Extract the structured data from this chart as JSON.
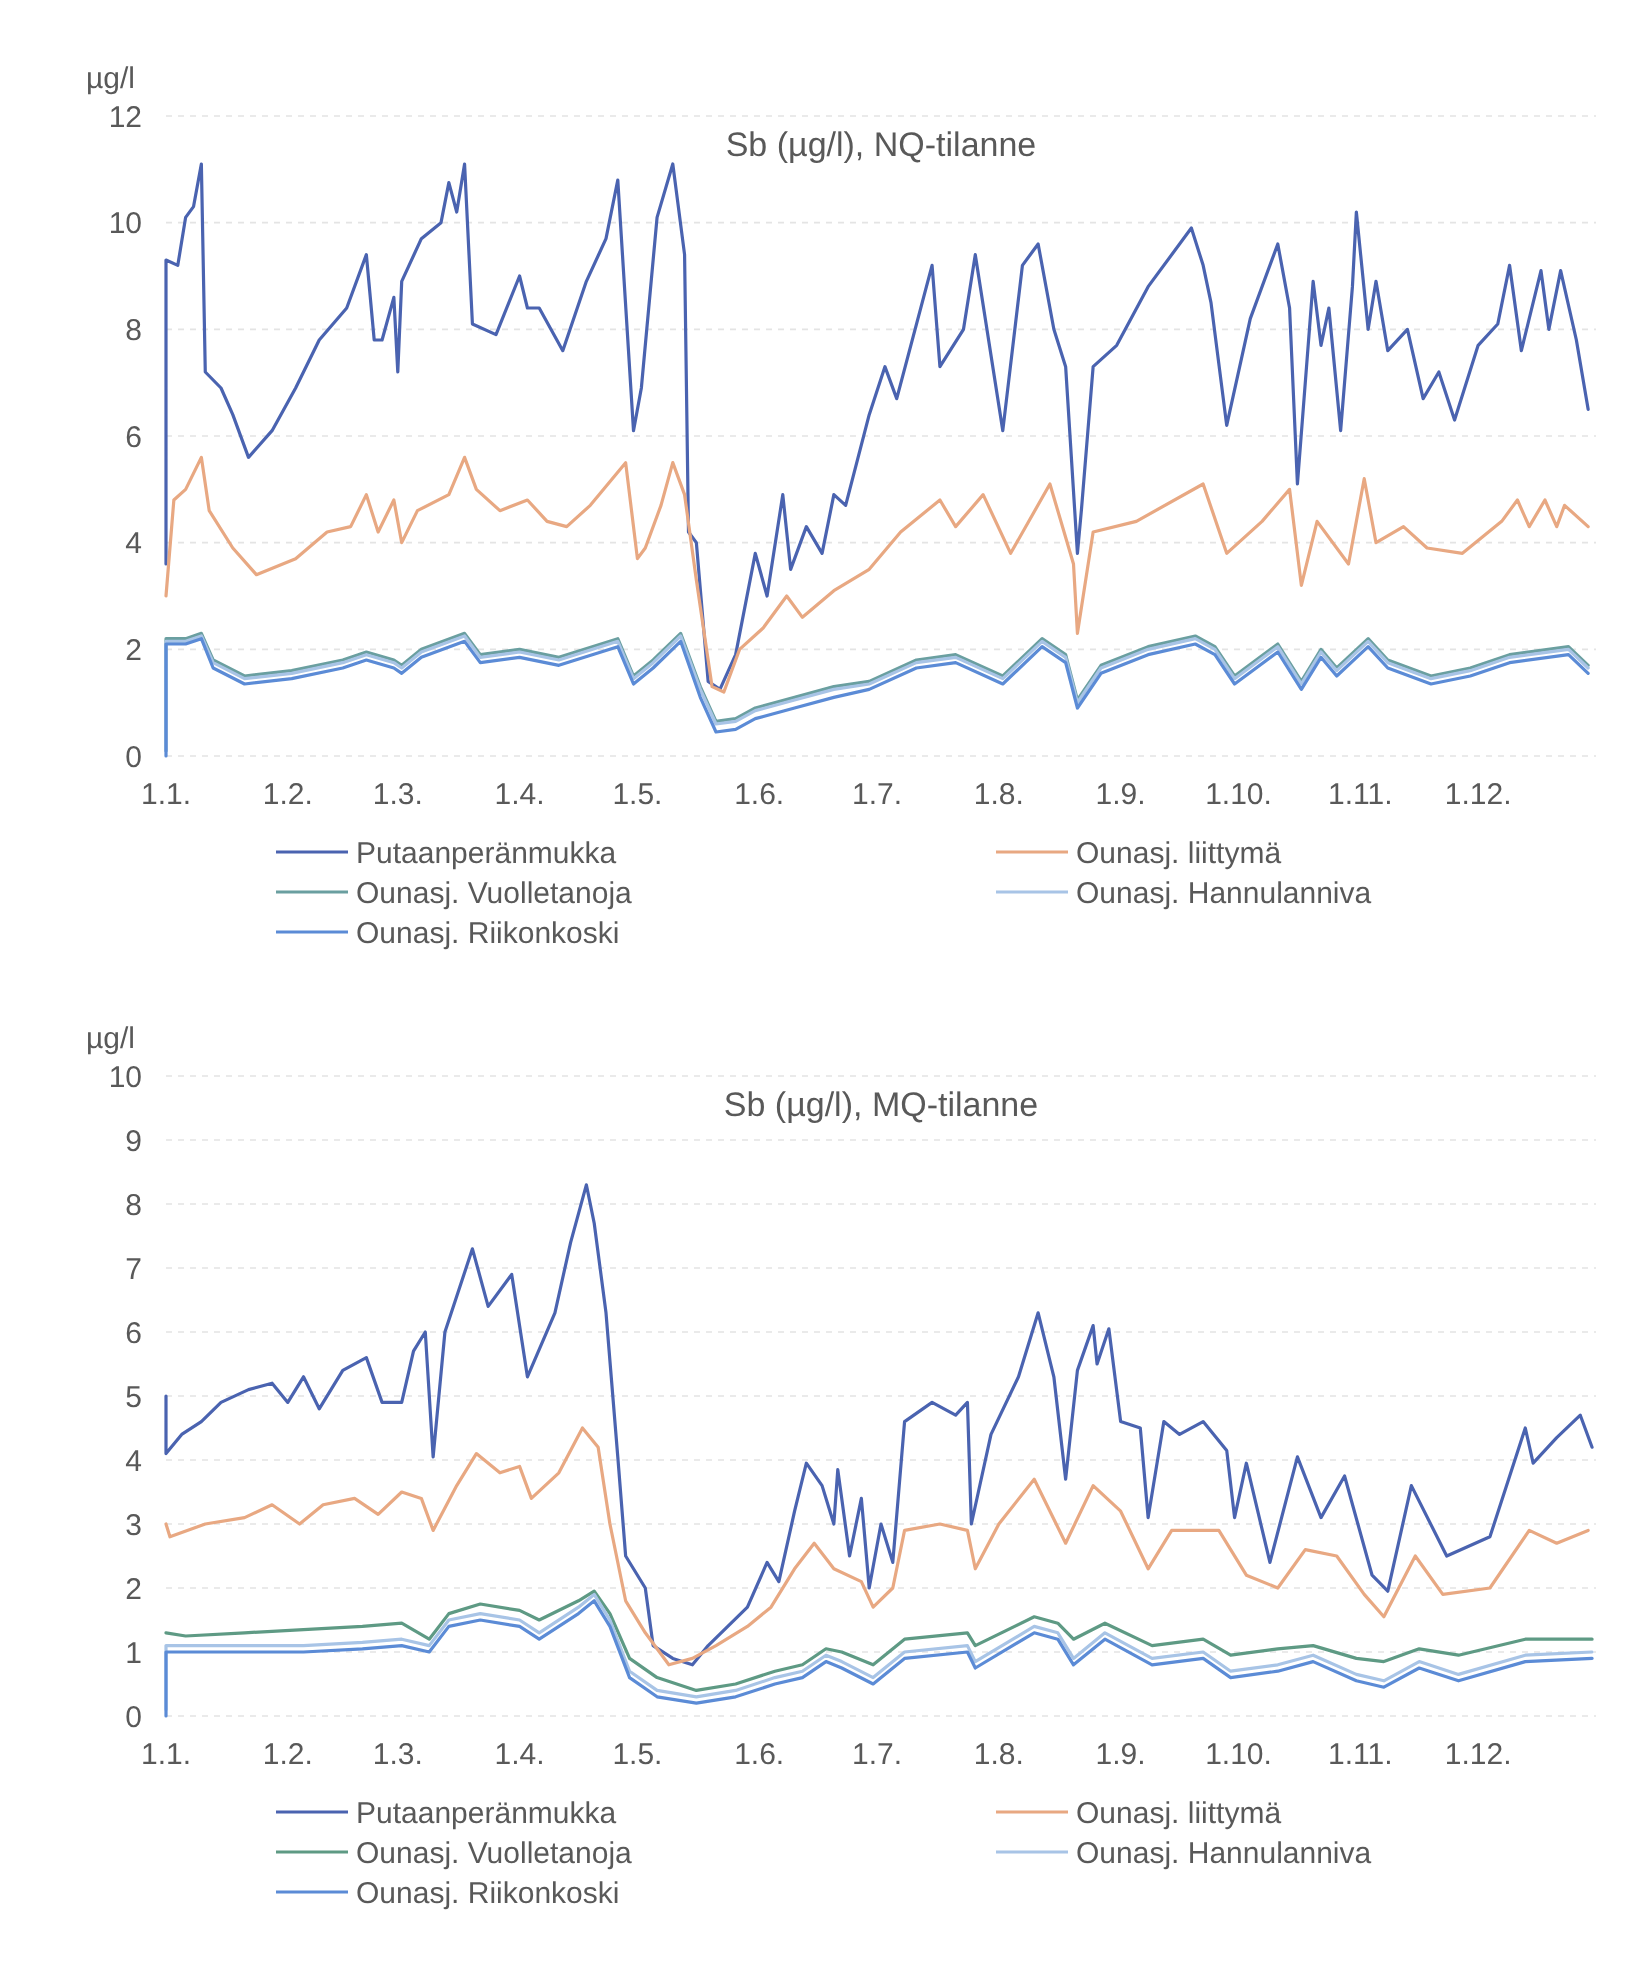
{
  "chart_data": [
    {
      "type": "line",
      "title": "Sb (µg/l), NQ-tilanne",
      "ylabel": "µg/l",
      "xlim": [
        "--01-01",
        "--12-31"
      ],
      "ylim": [
        0,
        12
      ],
      "yticks": [
        0,
        2,
        4,
        6,
        8,
        10,
        12
      ],
      "xticks": [
        {
          "value": "--01-01",
          "label": "1.1."
        },
        {
          "value": "--02-01",
          "label": "1.2."
        },
        {
          "value": "--03-01",
          "label": "1.3."
        },
        {
          "value": "--04-01",
          "label": "1.4."
        },
        {
          "value": "--05-01",
          "label": "1.5."
        },
        {
          "value": "--06-01",
          "label": "1.6."
        },
        {
          "value": "--07-01",
          "label": "1.7."
        },
        {
          "value": "--08-01",
          "label": "1.8."
        },
        {
          "value": "--09-01",
          "label": "1.9."
        },
        {
          "value": "--10-01",
          "label": "1.10."
        },
        {
          "value": "--11-01",
          "label": "1.11."
        },
        {
          "value": "--12-01",
          "label": "1.12."
        }
      ],
      "grid": "y",
      "legend": "bottom",
      "marker": "none",
      "line_style": "solid",
      "series": [
        {
          "name": "Putaanperänmukka",
          "color": "#4a63b0",
          "x": [
            "--01-01",
            "--01-01",
            "--01-04",
            "--01-06",
            "--01-08",
            "--01-10",
            "--01-11",
            "--01-15",
            "--01-18",
            "--01-22",
            "--01-28",
            "--02-03",
            "--02-09",
            "--02-16",
            "--02-21",
            "--02-23",
            "--02-25",
            "--02-28",
            "--03-01",
            "--03-02",
            "--03-07",
            "--03-12",
            "--03-14",
            "--03-16",
            "--03-18",
            "--03-20",
            "--03-26",
            "--04-01",
            "--04-03",
            "--04-06",
            "--04-12",
            "--04-18",
            "--04-23",
            "--04-26",
            "--04-30",
            "--05-02",
            "--05-06",
            "--05-10",
            "--05-13",
            "--05-14",
            "--05-16",
            "--05-19",
            "--05-22",
            "--05-26",
            "--05-31",
            "--06-03",
            "--06-07",
            "--06-09",
            "--06-13",
            "--06-17",
            "--06-20",
            "--06-23",
            "--06-29",
            "--07-03",
            "--07-06",
            "--07-15",
            "--07-17",
            "--07-23",
            "--07-26",
            "--08-02",
            "--08-07",
            "--08-11",
            "--08-15",
            "--08-18",
            "--08-21",
            "--08-22",
            "--08-25",
            "--08-31",
            "--09-08",
            "--09-19",
            "--09-22",
            "--09-24",
            "--09-28",
            "--10-04",
            "--10-11",
            "--10-14",
            "--10-16",
            "--10-20",
            "--10-22",
            "--10-24",
            "--10-27",
            "--10-30",
            "--10-31",
            "--11-03",
            "--11-05",
            "--11-08",
            "--11-13",
            "--11-17",
            "--11-21",
            "--11-25",
            "--12-01",
            "--12-06",
            "--12-09",
            "--12-12",
            "--12-17",
            "--12-19",
            "--12-22",
            "--12-26",
            "--12-29"
          ],
          "values": [
            3.6,
            9.3,
            9.2,
            10.1,
            10.3,
            11.1,
            7.2,
            6.9,
            6.4,
            5.6,
            6.1,
            6.9,
            7.8,
            8.4,
            9.4,
            7.8,
            7.8,
            8.6,
            7.2,
            8.9,
            9.7,
            10.0,
            10.75,
            10.2,
            11.1,
            8.1,
            7.9,
            9.0,
            8.4,
            8.4,
            7.6,
            8.9,
            9.7,
            10.8,
            6.1,
            6.9,
            10.1,
            11.1,
            9.4,
            4.2,
            4.0,
            1.4,
            1.25,
            1.9,
            3.8,
            3.0,
            4.9,
            3.5,
            4.3,
            3.8,
            4.9,
            4.7,
            6.4,
            7.3,
            6.7,
            9.2,
            7.3,
            8.0,
            9.4,
            6.1,
            9.2,
            9.6,
            8.0,
            7.3,
            3.8,
            4.6,
            7.3,
            7.7,
            8.8,
            9.9,
            9.2,
            8.5,
            6.2,
            8.2,
            9.6,
            8.4,
            5.1,
            8.9,
            7.7,
            8.4,
            6.1,
            8.8,
            10.2,
            8.0,
            8.9,
            7.6,
            8.0,
            6.7,
            7.2,
            6.3,
            7.7,
            8.1,
            9.2,
            7.6,
            9.1,
            8.0,
            9.1,
            7.8,
            6.5
          ]
        },
        {
          "name": "Ounasj. liittymä",
          "color": "#e8a882",
          "x": [
            "--01-01",
            "--01-03",
            "--01-06",
            "--01-10",
            "--01-12",
            "--01-18",
            "--01-24",
            "--02-03",
            "--02-11",
            "--02-17",
            "--02-21",
            "--02-24",
            "--02-28",
            "--03-02",
            "--03-06",
            "--03-14",
            "--03-18",
            "--03-21",
            "--03-27",
            "--04-03",
            "--04-08",
            "--04-13",
            "--04-19",
            "--04-28",
            "--05-01",
            "--05-03",
            "--05-07",
            "--05-10",
            "--05-13",
            "--05-16",
            "--05-20",
            "--05-23",
            "--05-27",
            "--06-02",
            "--06-08",
            "--06-12",
            "--06-20",
            "--06-29",
            "--07-07",
            "--07-17",
            "--07-21",
            "--07-28",
            "--08-04",
            "--08-14",
            "--08-20",
            "--08-21",
            "--08-25",
            "--09-05",
            "--09-22",
            "--09-28",
            "--10-07",
            "--10-14",
            "--10-17",
            "--10-21",
            "--10-29",
            "--11-02",
            "--11-05",
            "--11-12",
            "--11-18",
            "--11-27",
            "--12-07",
            "--12-11",
            "--12-14",
            "--12-18",
            "--12-21",
            "--12-23",
            "--12-29"
          ],
          "values": [
            3.0,
            4.8,
            5.0,
            5.6,
            4.6,
            3.9,
            3.4,
            3.7,
            4.2,
            4.3,
            4.9,
            4.2,
            4.8,
            4.0,
            4.6,
            4.9,
            5.6,
            5.0,
            4.6,
            4.8,
            4.4,
            4.3,
            4.7,
            5.5,
            3.7,
            3.9,
            4.7,
            5.5,
            4.9,
            3.3,
            1.3,
            1.2,
            2.0,
            2.4,
            3.0,
            2.6,
            3.1,
            3.5,
            4.2,
            4.8,
            4.3,
            4.9,
            3.8,
            5.1,
            3.6,
            2.3,
            4.2,
            4.4,
            5.1,
            3.8,
            4.4,
            5.0,
            3.2,
            4.4,
            3.6,
            5.2,
            4.0,
            4.3,
            3.9,
            3.8,
            4.4,
            4.8,
            4.3,
            4.8,
            4.3,
            4.7,
            4.3
          ]
        },
        {
          "name": "Ounasj. Vuolletanoja",
          "color": "#6a9fa0",
          "x": [
            "--01-01",
            "--01-01",
            "--01-06",
            "--01-10",
            "--01-13",
            "--01-21",
            "--02-02",
            "--02-15",
            "--02-21",
            "--02-28",
            "--03-02",
            "--03-07",
            "--03-18",
            "--03-22",
            "--04-01",
            "--04-11",
            "--04-26",
            "--04-30",
            "--05-05",
            "--05-12",
            "--05-17",
            "--05-21",
            "--05-26",
            "--05-31",
            "--06-10",
            "--06-20",
            "--06-29",
            "--07-11",
            "--07-21",
            "--08-02",
            "--08-12",
            "--08-18",
            "--08-21",
            "--08-27",
            "--09-08",
            "--09-20",
            "--09-25",
            "--09-30",
            "--10-11",
            "--10-17",
            "--10-22",
            "--10-26",
            "--11-03",
            "--11-08",
            "--11-19",
            "--11-29",
            "--12-09",
            "--12-24",
            "--12-29"
          ],
          "values": [
            0.1,
            2.2,
            2.2,
            2.3,
            1.8,
            1.5,
            1.6,
            1.8,
            1.95,
            1.8,
            1.7,
            2.0,
            2.3,
            1.9,
            2.0,
            1.85,
            2.2,
            1.5,
            1.8,
            2.3,
            1.3,
            0.65,
            0.7,
            0.9,
            1.1,
            1.3,
            1.4,
            1.8,
            1.9,
            1.5,
            2.2,
            1.9,
            1.05,
            1.7,
            2.05,
            2.25,
            2.05,
            1.5,
            2.1,
            1.4,
            2.0,
            1.65,
            2.2,
            1.8,
            1.5,
            1.65,
            1.9,
            2.05,
            1.7
          ]
        },
        {
          "name": "Ounasj. Hannulanniva",
          "color": "#a8c4e6",
          "x": [
            "--01-01",
            "--01-01",
            "--01-06",
            "--01-10",
            "--01-13",
            "--01-21",
            "--02-02",
            "--02-15",
            "--02-21",
            "--02-28",
            "--03-02",
            "--03-07",
            "--03-18",
            "--03-22",
            "--04-01",
            "--04-11",
            "--04-26",
            "--04-30",
            "--05-05",
            "--05-12",
            "--05-17",
            "--05-21",
            "--05-26",
            "--05-31",
            "--06-10",
            "--06-20",
            "--06-29",
            "--07-11",
            "--07-21",
            "--08-02",
            "--08-12",
            "--08-18",
            "--08-21",
            "--08-27",
            "--09-08",
            "--09-20",
            "--09-25",
            "--09-30",
            "--10-11",
            "--10-17",
            "--10-22",
            "--10-26",
            "--11-03",
            "--11-08",
            "--11-19",
            "--11-29",
            "--12-09",
            "--12-24",
            "--12-29"
          ],
          "values": [
            0.1,
            2.15,
            2.15,
            2.25,
            1.75,
            1.45,
            1.55,
            1.75,
            1.9,
            1.75,
            1.65,
            1.95,
            2.25,
            1.85,
            1.95,
            1.8,
            2.15,
            1.45,
            1.75,
            2.25,
            1.25,
            0.6,
            0.65,
            0.85,
            1.05,
            1.25,
            1.35,
            1.75,
            1.85,
            1.45,
            2.15,
            1.85,
            1.0,
            1.65,
            2.0,
            2.2,
            2.0,
            1.45,
            2.05,
            1.35,
            1.95,
            1.6,
            2.15,
            1.75,
            1.45,
            1.6,
            1.85,
            2.0,
            1.65
          ]
        },
        {
          "name": "Ounasj. Riikonkoski",
          "color": "#5b8bd6",
          "x": [
            "--01-01",
            "--01-01",
            "--01-06",
            "--01-10",
            "--01-13",
            "--01-21",
            "--02-02",
            "--02-15",
            "--02-21",
            "--02-28",
            "--03-02",
            "--03-07",
            "--03-18",
            "--03-22",
            "--04-01",
            "--04-11",
            "--04-26",
            "--04-30",
            "--05-05",
            "--05-12",
            "--05-17",
            "--05-21",
            "--05-26",
            "--05-31",
            "--06-10",
            "--06-20",
            "--06-29",
            "--07-11",
            "--07-21",
            "--08-02",
            "--08-12",
            "--08-18",
            "--08-21",
            "--08-27",
            "--09-08",
            "--09-20",
            "--09-25",
            "--09-30",
            "--10-11",
            "--10-17",
            "--10-22",
            "--10-26",
            "--11-03",
            "--11-08",
            "--11-19",
            "--11-29",
            "--12-09",
            "--12-24",
            "--12-29"
          ],
          "values": [
            0.0,
            2.1,
            2.1,
            2.2,
            1.65,
            1.35,
            1.45,
            1.65,
            1.8,
            1.65,
            1.55,
            1.85,
            2.15,
            1.75,
            1.85,
            1.7,
            2.05,
            1.35,
            1.65,
            2.15,
            1.1,
            0.45,
            0.5,
            0.7,
            0.9,
            1.1,
            1.25,
            1.65,
            1.75,
            1.35,
            2.05,
            1.75,
            0.9,
            1.55,
            1.9,
            2.1,
            1.9,
            1.35,
            1.95,
            1.25,
            1.85,
            1.5,
            2.05,
            1.65,
            1.35,
            1.5,
            1.75,
            1.9,
            1.55
          ]
        }
      ]
    },
    {
      "type": "line",
      "title": "Sb (µg/l), MQ-tilanne",
      "ylabel": "µg/l",
      "xlim": [
        "--01-01",
        "--12-31"
      ],
      "ylim": [
        0,
        10
      ],
      "yticks": [
        0,
        1,
        2,
        3,
        4,
        5,
        6,
        7,
        8,
        9,
        10
      ],
      "xticks": [
        {
          "value": "--01-01",
          "label": "1.1."
        },
        {
          "value": "--02-01",
          "label": "1.2."
        },
        {
          "value": "--03-01",
          "label": "1.3."
        },
        {
          "value": "--04-01",
          "label": "1.4."
        },
        {
          "value": "--05-01",
          "label": "1.5."
        },
        {
          "value": "--06-01",
          "label": "1.6."
        },
        {
          "value": "--07-01",
          "label": "1.7."
        },
        {
          "value": "--08-01",
          "label": "1.8."
        },
        {
          "value": "--09-01",
          "label": "1.9."
        },
        {
          "value": "--10-01",
          "label": "1.10."
        },
        {
          "value": "--11-01",
          "label": "1.11."
        },
        {
          "value": "--12-01",
          "label": "1.12."
        }
      ],
      "grid": "y",
      "legend": "bottom",
      "marker": "none",
      "line_style": "solid",
      "series": [
        {
          "name": "Putaanperänmukka",
          "color": "#4a63b0",
          "x": [
            "--01-01",
            "--01-01",
            "--01-05",
            "--01-10",
            "--01-15",
            "--01-22",
            "--01-28",
            "--02-01",
            "--02-05",
            "--02-09",
            "--02-15",
            "--02-21",
            "--02-25",
            "--03-02",
            "--03-05",
            "--03-08",
            "--03-10",
            "--03-13",
            "--03-20",
            "--03-24",
            "--03-30",
            "--04-03",
            "--04-10",
            "--04-14",
            "--04-18",
            "--04-20",
            "--04-23",
            "--04-26",
            "--04-28",
            "--05-03",
            "--05-05",
            "--05-10",
            "--05-15",
            "--05-19",
            "--05-24",
            "--05-29",
            "--06-03",
            "--06-06",
            "--06-10",
            "--06-13",
            "--06-17",
            "--06-20",
            "--06-21",
            "--06-24",
            "--06-27",
            "--06-29",
            "--07-02",
            "--07-05",
            "--07-08",
            "--07-15",
            "--07-21",
            "--07-24",
            "--07-25",
            "--07-30",
            "--08-06",
            "--08-11",
            "--08-15",
            "--08-18",
            "--08-21",
            "--08-25",
            "--08-26",
            "--08-29",
            "--09-01",
            "--09-06",
            "--09-08",
            "--09-12",
            "--09-16",
            "--09-22",
            "--09-28",
            "--09-30",
            "--10-03",
            "--10-09",
            "--10-16",
            "--10-22",
            "--10-28",
            "--11-04",
            "--11-08",
            "--11-14",
            "--11-23",
            "--12-04",
            "--12-13",
            "--12-15",
            "--12-21",
            "--12-27",
            "--12-30"
          ],
          "values": [
            5.0,
            4.1,
            4.4,
            4.6,
            4.9,
            5.1,
            5.2,
            4.9,
            5.3,
            4.8,
            5.4,
            5.6,
            4.9,
            4.9,
            5.7,
            6.0,
            4.05,
            6.0,
            7.3,
            6.4,
            6.9,
            5.3,
            6.3,
            7.4,
            8.3,
            7.7,
            6.3,
            4.05,
            2.5,
            2.0,
            1.1,
            0.9,
            0.8,
            1.1,
            1.4,
            1.7,
            2.4,
            2.1,
            3.2,
            3.95,
            3.6,
            3.0,
            3.85,
            2.5,
            3.4,
            2.0,
            3.0,
            2.4,
            4.6,
            4.9,
            4.7,
            4.9,
            3.0,
            4.4,
            5.3,
            6.3,
            5.3,
            3.7,
            5.4,
            6.1,
            5.5,
            6.05,
            4.6,
            4.5,
            3.1,
            4.6,
            4.4,
            4.6,
            4.15,
            3.1,
            3.95,
            2.4,
            4.05,
            3.1,
            3.75,
            2.2,
            1.95,
            3.6,
            2.5,
            2.8,
            4.5,
            3.95,
            4.35,
            4.7,
            4.2
          ]
        },
        {
          "name": "Ounasj. liittymä",
          "color": "#e8a882",
          "x": [
            "--01-01",
            "--01-02",
            "--01-11",
            "--01-21",
            "--01-28",
            "--02-04",
            "--02-10",
            "--02-18",
            "--02-24",
            "--03-02",
            "--03-07",
            "--03-10",
            "--03-16",
            "--03-21",
            "--03-27",
            "--04-01",
            "--04-04",
            "--04-11",
            "--04-17",
            "--04-21",
            "--04-24",
            "--04-28",
            "--05-03",
            "--05-09",
            "--05-15",
            "--05-21",
            "--05-29",
            "--06-04",
            "--06-10",
            "--06-15",
            "--06-20",
            "--06-27",
            "--06-30",
            "--07-05",
            "--07-08",
            "--07-17",
            "--07-24",
            "--07-26",
            "--08-01",
            "--08-10",
            "--08-18",
            "--08-25",
            "--09-01",
            "--09-08",
            "--09-14",
            "--09-26",
            "--10-03",
            "--10-11",
            "--10-18",
            "--10-26",
            "--11-02",
            "--11-07",
            "--11-15",
            "--11-22",
            "--12-04",
            "--12-14",
            "--12-21",
            "--12-29"
          ],
          "values": [
            3.0,
            2.8,
            3.0,
            3.1,
            3.3,
            3.0,
            3.3,
            3.4,
            3.15,
            3.5,
            3.4,
            2.9,
            3.6,
            4.1,
            3.8,
            3.9,
            3.4,
            3.8,
            4.5,
            4.2,
            3.0,
            1.8,
            1.3,
            0.8,
            0.9,
            1.1,
            1.4,
            1.7,
            2.3,
            2.7,
            2.3,
            2.1,
            1.7,
            2.0,
            2.9,
            3.0,
            2.9,
            2.3,
            3.0,
            3.7,
            2.7,
            3.6,
            3.2,
            2.3,
            2.9,
            2.9,
            2.2,
            2.0,
            2.6,
            2.5,
            1.9,
            1.55,
            2.5,
            1.9,
            2.0,
            2.9,
            2.7,
            2.9
          ]
        },
        {
          "name": "Ounasj. Vuolletanoja",
          "color": "#5e9a84",
          "x": [
            "--01-01",
            "--01-01",
            "--01-06",
            "--01-21",
            "--02-05",
            "--02-20",
            "--03-02",
            "--03-09",
            "--03-14",
            "--03-22",
            "--04-01",
            "--04-06",
            "--04-16",
            "--04-20",
            "--04-24",
            "--04-29",
            "--05-06",
            "--05-16",
            "--05-26",
            "--06-05",
            "--06-12",
            "--06-18",
            "--06-22",
            "--06-30",
            "--07-08",
            "--07-24",
            "--07-26",
            "--08-10",
            "--08-16",
            "--08-20",
            "--08-28",
            "--09-09",
            "--09-22",
            "--09-29",
            "--10-11",
            "--10-20",
            "--10-31",
            "--11-07",
            "--11-16",
            "--11-26",
            "--12-13",
            "--12-30"
          ],
          "values": [
            1.3,
            1.3,
            1.25,
            1.3,
            1.35,
            1.4,
            1.45,
            1.2,
            1.6,
            1.75,
            1.65,
            1.5,
            1.8,
            1.95,
            1.6,
            0.9,
            0.6,
            0.4,
            0.5,
            0.7,
            0.8,
            1.05,
            1.0,
            0.8,
            1.2,
            1.3,
            1.1,
            1.55,
            1.45,
            1.2,
            1.45,
            1.1,
            1.2,
            0.95,
            1.05,
            1.1,
            0.9,
            0.85,
            1.05,
            0.95,
            1.2,
            1.2
          ]
        },
        {
          "name": "Ounasj. Hannulanniva",
          "color": "#a8c4e6",
          "x": [
            "--01-01",
            "--01-01",
            "--01-06",
            "--01-21",
            "--02-05",
            "--02-20",
            "--03-02",
            "--03-09",
            "--03-14",
            "--03-22",
            "--04-01",
            "--04-06",
            "--04-16",
            "--04-20",
            "--04-24",
            "--04-29",
            "--05-06",
            "--05-16",
            "--05-26",
            "--06-05",
            "--06-12",
            "--06-18",
            "--06-22",
            "--06-30",
            "--07-08",
            "--07-24",
            "--07-26",
            "--08-10",
            "--08-16",
            "--08-20",
            "--08-28",
            "--09-09",
            "--09-22",
            "--09-29",
            "--10-11",
            "--10-20",
            "--10-31",
            "--11-07",
            "--11-16",
            "--11-26",
            "--12-13",
            "--12-30"
          ],
          "values": [
            0.1,
            1.1,
            1.1,
            1.1,
            1.1,
            1.15,
            1.2,
            1.1,
            1.5,
            1.6,
            1.5,
            1.3,
            1.7,
            1.9,
            1.5,
            0.7,
            0.4,
            0.3,
            0.4,
            0.6,
            0.7,
            0.95,
            0.85,
            0.6,
            1.0,
            1.1,
            0.85,
            1.4,
            1.3,
            0.9,
            1.3,
            0.9,
            1.0,
            0.7,
            0.8,
            0.95,
            0.65,
            0.55,
            0.85,
            0.65,
            0.95,
            1.0
          ]
        },
        {
          "name": "Ounasj. Riikonkoski",
          "color": "#5b8bd6",
          "x": [
            "--01-01",
            "--01-01",
            "--01-06",
            "--01-21",
            "--02-05",
            "--02-20",
            "--03-02",
            "--03-09",
            "--03-14",
            "--03-22",
            "--04-01",
            "--04-06",
            "--04-16",
            "--04-20",
            "--04-24",
            "--04-29",
            "--05-06",
            "--05-16",
            "--05-26",
            "--06-05",
            "--06-12",
            "--06-18",
            "--06-22",
            "--06-30",
            "--07-08",
            "--07-24",
            "--07-26",
            "--08-10",
            "--08-16",
            "--08-20",
            "--08-28",
            "--09-09",
            "--09-22",
            "--09-29",
            "--10-11",
            "--10-20",
            "--10-31",
            "--11-07",
            "--11-16",
            "--11-26",
            "--12-13",
            "--12-30"
          ],
          "values": [
            0.0,
            1.0,
            1.0,
            1.0,
            1.0,
            1.05,
            1.1,
            1.0,
            1.4,
            1.5,
            1.4,
            1.2,
            1.6,
            1.8,
            1.4,
            0.6,
            0.3,
            0.2,
            0.3,
            0.5,
            0.6,
            0.85,
            0.75,
            0.5,
            0.9,
            1.0,
            0.75,
            1.3,
            1.2,
            0.8,
            1.2,
            0.8,
            0.9,
            0.6,
            0.7,
            0.85,
            0.55,
            0.45,
            0.75,
            0.55,
            0.85,
            0.9
          ]
        }
      ]
    }
  ]
}
